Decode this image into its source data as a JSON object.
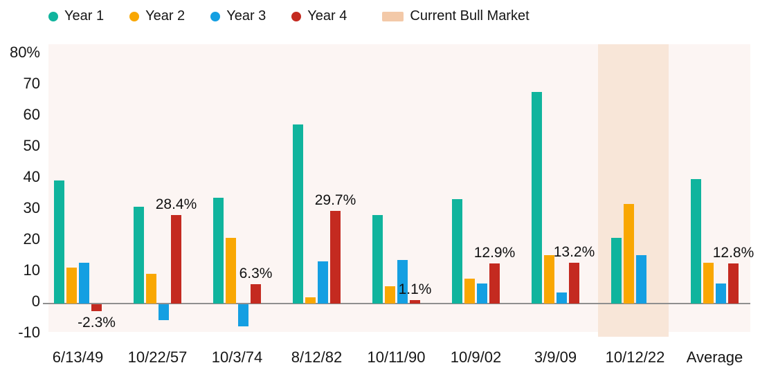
{
  "legend": {
    "items": [
      {
        "label": "Year 1",
        "color": "#10b49d",
        "marker": "dot"
      },
      {
        "label": "Year 2",
        "color": "#f9a702",
        "marker": "dot"
      },
      {
        "label": "Year 3",
        "color": "#149fe2",
        "marker": "dot"
      },
      {
        "label": "Year 4",
        "color": "#c42a20",
        "marker": "dot"
      },
      {
        "label": "Current Bull Market",
        "color": "#f3c9a8",
        "marker": "swatch"
      }
    ]
  },
  "chart_data": {
    "type": "bar",
    "title": "",
    "xlabel": "",
    "ylabel": "",
    "grid": false,
    "legend_position": "top",
    "categories": [
      "6/13/49",
      "10/22/57",
      "10/3/74",
      "8/12/82",
      "10/11/90",
      "10/9/02",
      "3/9/09",
      "10/12/22",
      "Average"
    ],
    "series": [
      {
        "name": "Year 1",
        "color": "#10b49d",
        "values": [
          39.5,
          31,
          34,
          57.5,
          28.5,
          33.5,
          68,
          21,
          40
        ]
      },
      {
        "name": "Year 2",
        "color": "#f9a702",
        "values": [
          11.5,
          9.5,
          21,
          2,
          5.5,
          8,
          15.5,
          32,
          13
        ]
      },
      {
        "name": "Year 3",
        "color": "#149fe2",
        "values": [
          13,
          -5,
          -7,
          13.5,
          14,
          6.5,
          3.5,
          15.5,
          6.5
        ]
      },
      {
        "name": "Year 4",
        "color": "#c42a20",
        "values": [
          -2.3,
          28.4,
          6.3,
          29.7,
          1.1,
          12.9,
          13.2,
          null,
          12.8
        ]
      }
    ],
    "value_labels": [
      {
        "category_index": 0,
        "series": "Year 4",
        "text": "-2.3%",
        "placement": "below"
      },
      {
        "category_index": 1,
        "series": "Year 4",
        "text": "28.4%",
        "placement": "above"
      },
      {
        "category_index": 2,
        "series": "Year 4",
        "text": "6.3%",
        "placement": "above"
      },
      {
        "category_index": 3,
        "series": "Year 4",
        "text": "29.7%",
        "placement": "above"
      },
      {
        "category_index": 4,
        "series": "Year 4",
        "text": "1.1%",
        "placement": "above"
      },
      {
        "category_index": 5,
        "series": "Year 4",
        "text": "12.9%",
        "placement": "above"
      },
      {
        "category_index": 6,
        "series": "Year 4",
        "text": "13.2%",
        "placement": "above"
      },
      {
        "category_index": 8,
        "series": "Year 4",
        "text": "12.8%",
        "placement": "above"
      }
    ],
    "highlight_band": {
      "label": "Current Bull Market",
      "category": "10/12/22",
      "category_index": 7,
      "color": "#f8e6d8"
    },
    "y_axis": {
      "ticks": [
        {
          "label": "80%",
          "value": 80
        },
        {
          "label": "70",
          "value": 70
        },
        {
          "label": "60",
          "value": 60
        },
        {
          "label": "50",
          "value": 50
        },
        {
          "label": "40",
          "value": 40
        },
        {
          "label": "30",
          "value": 30
        },
        {
          "label": "20",
          "value": 20
        },
        {
          "label": "10",
          "value": 10
        },
        {
          "label": "0",
          "value": 0
        },
        {
          "label": "-10",
          "value": -10
        }
      ],
      "min": -10,
      "max": 83,
      "unit": "%"
    },
    "colors": {
      "plot_background": "#fcf5f3",
      "band": "#f8e6d8",
      "legend_band_swatch": "#f3c9a8",
      "baseline": "#8f8f8f",
      "text": "#161616",
      "page_background": "#ffffff"
    }
  }
}
